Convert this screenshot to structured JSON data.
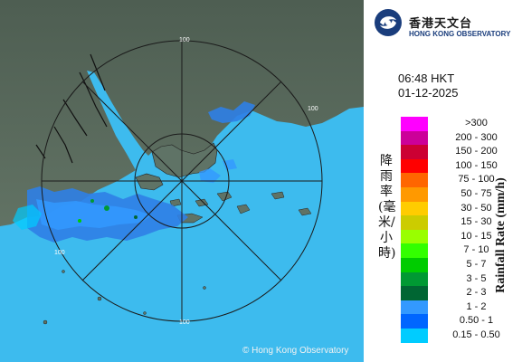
{
  "header": {
    "logo_name_cn": "香港天文台",
    "logo_name_en": "HONG KONG OBSERVATORY"
  },
  "timestamp": {
    "time": "06:48 HKT",
    "date": "01-12-2025"
  },
  "map": {
    "copyright": "© Hong Kong Observatory",
    "range_labels": [
      "100",
      "100",
      "100",
      "100"
    ],
    "sea_color": "#29b6f6",
    "land_color": "#6b7d6e"
  },
  "legend": {
    "title_cn": "降雨率(毫米/小時)",
    "title_en": "Rainfall Rate (mm/h)",
    "items": [
      {
        "label": ">300",
        "color": "#ff00ff"
      },
      {
        "label": "200 - 300",
        "color": "#cc0099"
      },
      {
        "label": "150 - 200",
        "color": "#cc0033"
      },
      {
        "label": "100 - 150",
        "color": "#ff0000"
      },
      {
        "label": "75 - 100",
        "color": "#ff6600"
      },
      {
        "label": "50 - 75",
        "color": "#ff9900"
      },
      {
        "label": "30 - 50",
        "color": "#ffcc00"
      },
      {
        "label": "15 - 30",
        "color": "#cccc00"
      },
      {
        "label": "10 - 15",
        "color": "#99ff00"
      },
      {
        "label": "7 - 10",
        "color": "#33ff00"
      },
      {
        "label": "5 - 7",
        "color": "#00cc00"
      },
      {
        "label": "3 - 5",
        "color": "#009933"
      },
      {
        "label": "2 - 3",
        "color": "#006633"
      },
      {
        "label": "1 - 2",
        "color": "#3399ff"
      },
      {
        "label": "0.50 - 1",
        "color": "#0066ff"
      },
      {
        "label": "0.15 - 0.50",
        "color": "#00ccff"
      }
    ]
  }
}
